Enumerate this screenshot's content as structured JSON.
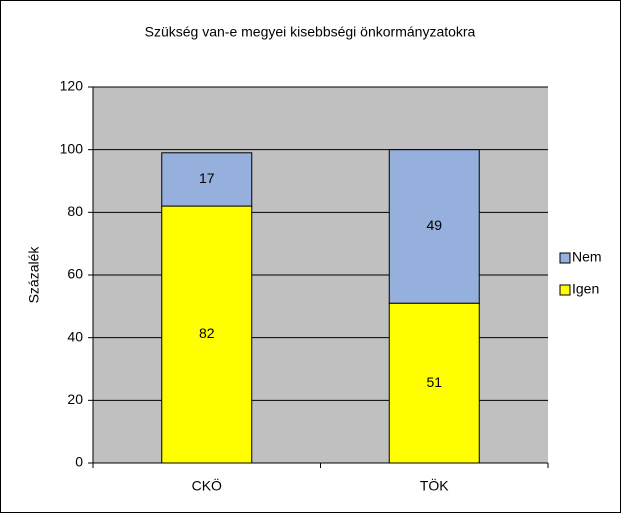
{
  "chart_data": {
    "type": "stacked_bar",
    "title": "Szükség van-e megyei kisebbségi önkormányzatokra",
    "y_label": "Százalék",
    "categories": [
      "CKÖ",
      "TÖK"
    ],
    "series": [
      {
        "name": "Igen",
        "color": "#ffff00",
        "values": [
          82,
          51
        ]
      },
      {
        "name": "Nem",
        "color": "#95b0dc",
        "values": [
          17,
          49
        ]
      }
    ],
    "ylim": [
      0,
      120
    ],
    "yticks": [
      0,
      20,
      40,
      60,
      80,
      100,
      120
    ],
    "grid": true,
    "legend": "right"
  }
}
